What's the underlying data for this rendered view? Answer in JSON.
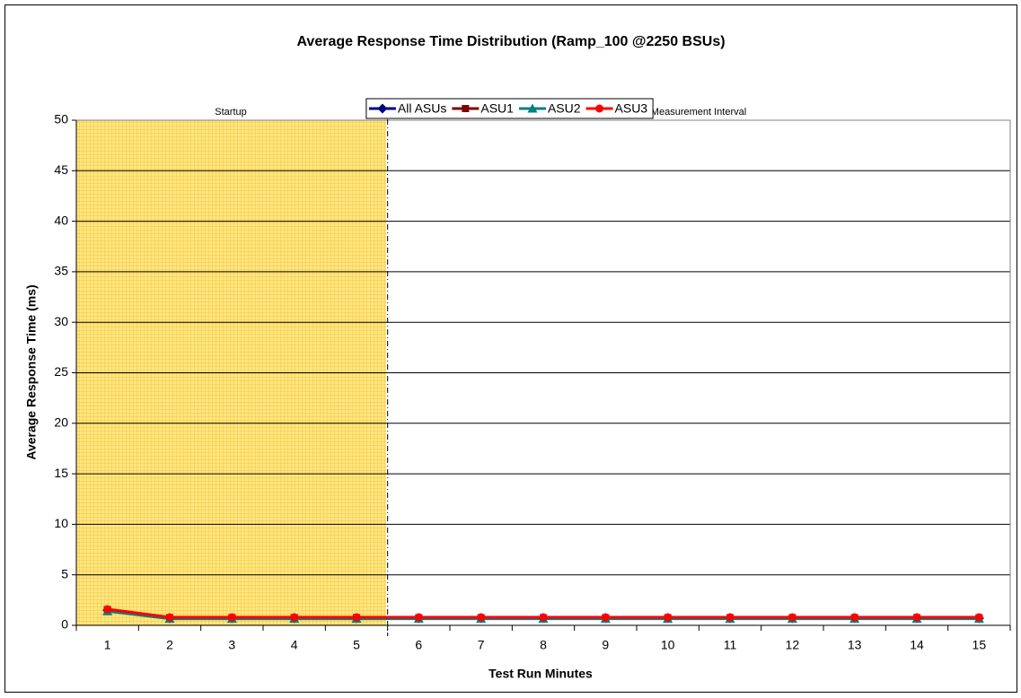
{
  "chart_data": {
    "type": "line",
    "title": "Average Response Time Distribution (Ramp_100 @2250 BSUs)",
    "x_label": "Test Run Minutes",
    "y_label": "Average Response Time (ms)",
    "categories": [
      "1",
      "2",
      "3",
      "4",
      "5",
      "6",
      "7",
      "8",
      "9",
      "10",
      "11",
      "12",
      "13",
      "14",
      "15"
    ],
    "annotations": [
      "Startup",
      "Measurement Interval"
    ],
    "series": [
      {
        "name": "All ASUs",
        "color": "#000080",
        "marker": "diamond",
        "values": [
          1.5,
          0.7,
          0.7,
          0.7,
          0.7,
          0.7,
          0.7,
          0.7,
          0.7,
          0.7,
          0.7,
          0.7,
          0.7,
          0.7,
          0.7
        ]
      },
      {
        "name": "ASU1",
        "color": "#800000",
        "marker": "square",
        "values": [
          1.55,
          0.75,
          0.75,
          0.75,
          0.75,
          0.75,
          0.75,
          0.75,
          0.75,
          0.75,
          0.75,
          0.75,
          0.75,
          0.75,
          0.75
        ]
      },
      {
        "name": "ASU2",
        "color": "#008080",
        "marker": "triangle",
        "values": [
          1.4,
          0.65,
          0.65,
          0.65,
          0.65,
          0.65,
          0.65,
          0.65,
          0.65,
          0.65,
          0.65,
          0.65,
          0.65,
          0.65,
          0.65
        ]
      },
      {
        "name": "ASU3",
        "color": "#ff0000",
        "marker": "circle",
        "values": [
          1.6,
          0.8,
          0.8,
          0.8,
          0.8,
          0.8,
          0.8,
          0.8,
          0.8,
          0.8,
          0.8,
          0.8,
          0.8,
          0.8,
          0.8
        ]
      }
    ],
    "ylim": [
      0,
      50
    ],
    "yticks": [
      0,
      5,
      10,
      15,
      20,
      25,
      30,
      35,
      40,
      45,
      50
    ],
    "grid": true,
    "legend": "top"
  }
}
